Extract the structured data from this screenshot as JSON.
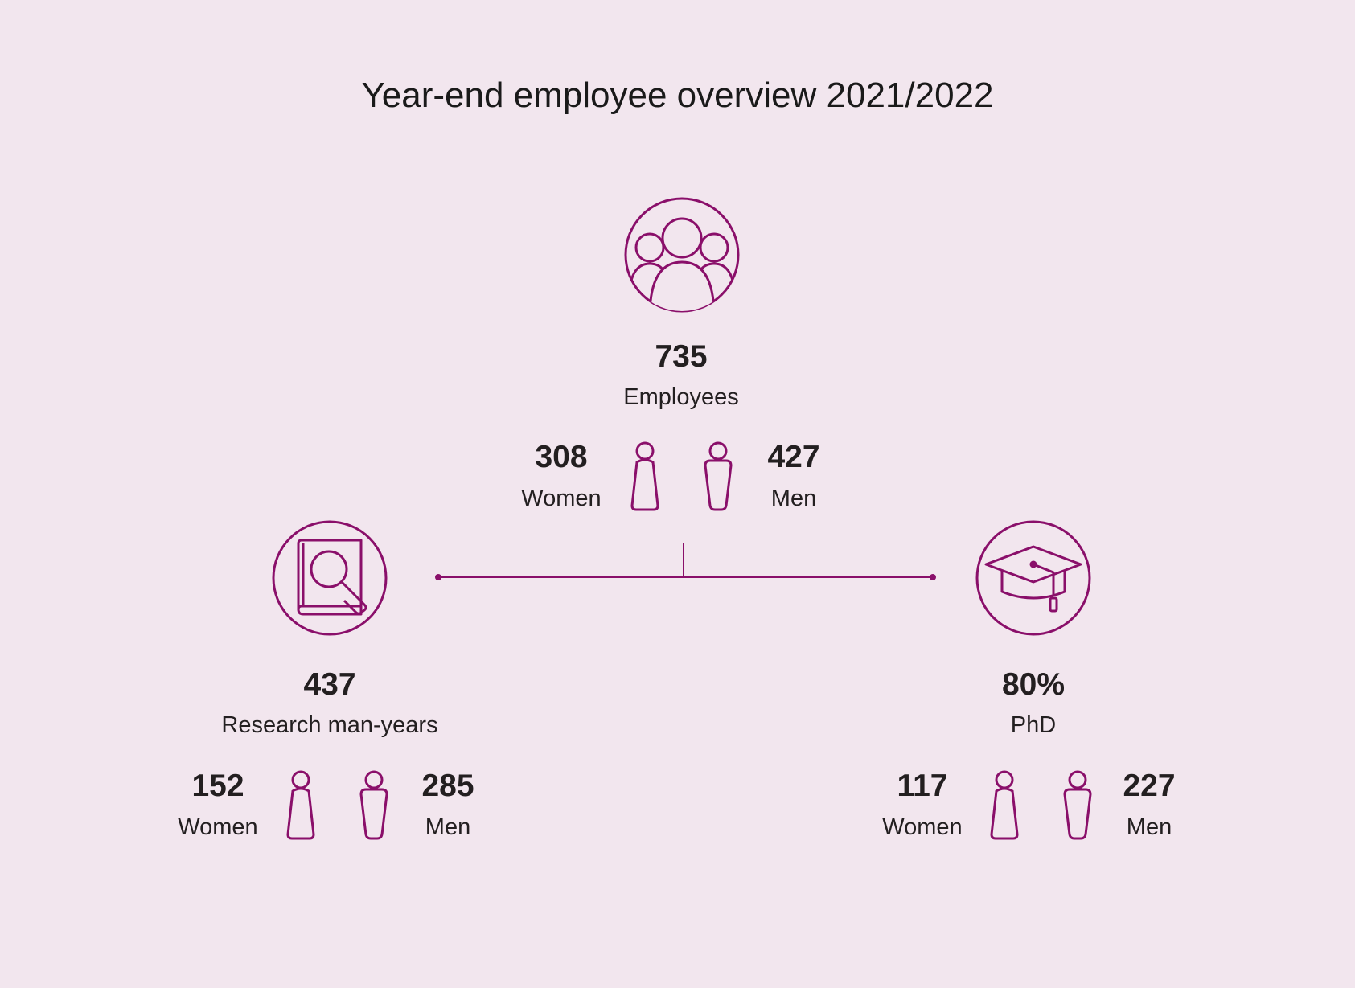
{
  "title": "Year-end employee overview 2021/2022",
  "colors": {
    "background": "#f2e6ee",
    "accent": "#8a0f6a",
    "text": "#231f20"
  },
  "employees": {
    "icon": "group-icon",
    "total": "735",
    "label": "Employees",
    "women_value": "308",
    "women_label": "Women",
    "men_value": "427",
    "men_label": "Men"
  },
  "research": {
    "icon": "book-magnifier-icon",
    "total": "437",
    "label": "Research man-years",
    "women_value": "152",
    "women_label": "Women",
    "men_value": "285",
    "men_label": "Men"
  },
  "phd": {
    "icon": "graduation-cap-icon",
    "total": "80%",
    "label": "PhD",
    "women_value": "117",
    "women_label": "Women",
    "men_value": "227",
    "men_label": "Men"
  }
}
